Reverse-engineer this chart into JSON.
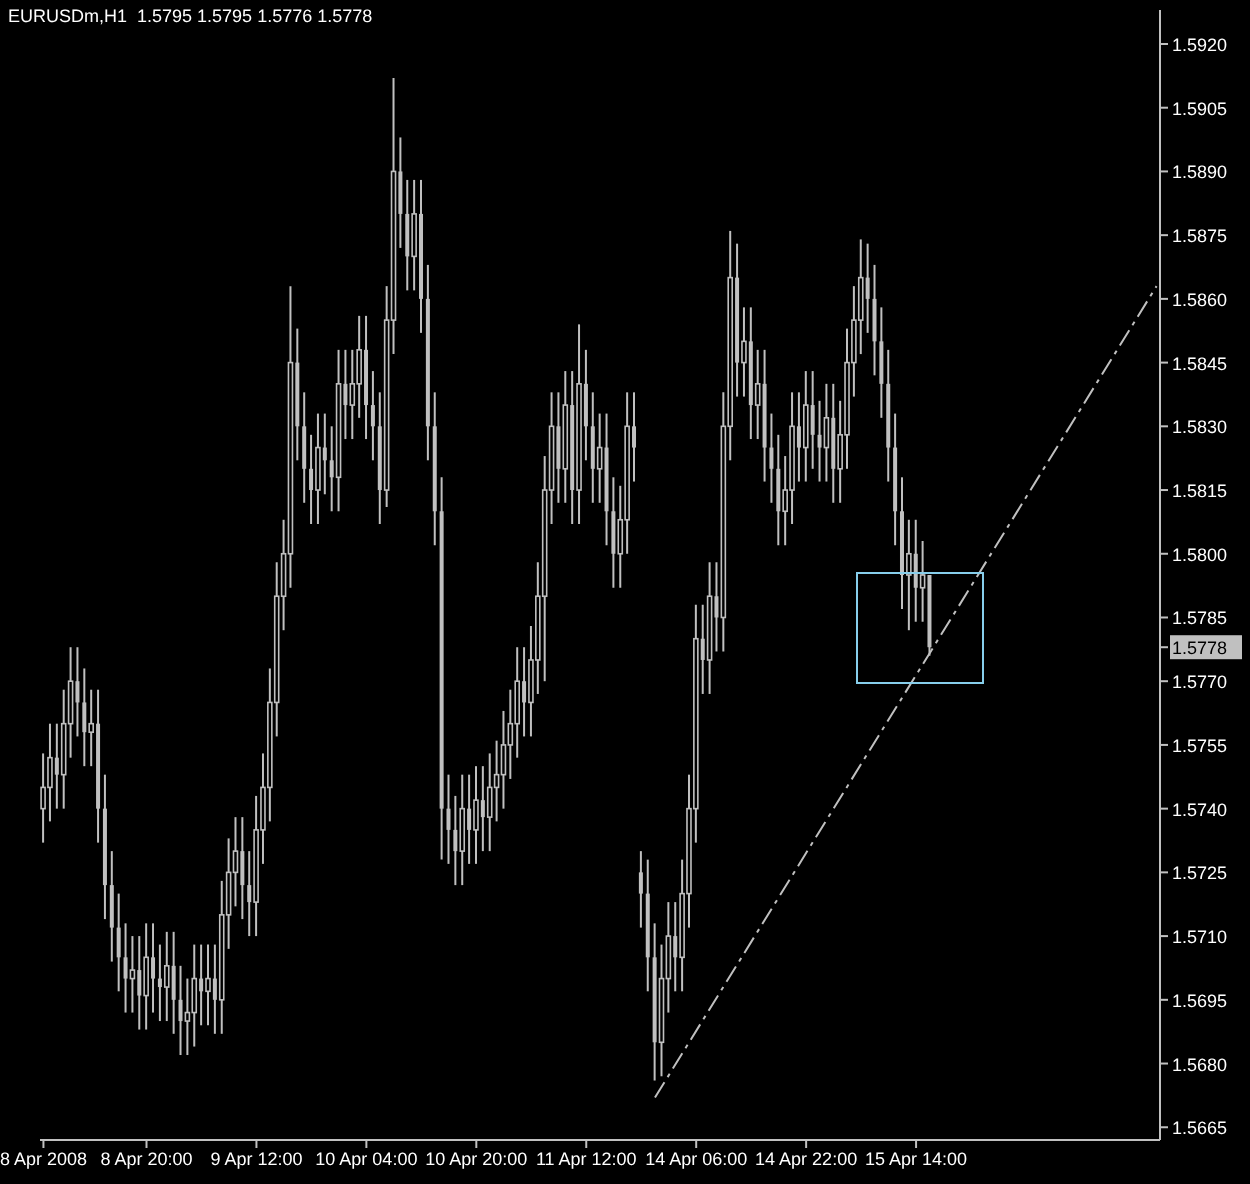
{
  "chart_data": {
    "type": "candlestick",
    "title": "EURUSDm,H1  1.5795 1.5795 1.5776 1.5778",
    "color": "#c0c0c0",
    "legend": false,
    "grid": false,
    "categories": [
      "8 Apr 2008",
      null,
      null,
      null,
      null,
      null,
      null,
      null,
      null,
      null,
      null,
      null,
      null,
      null,
      null,
      "8 Apr 20:00",
      null,
      null,
      null,
      null,
      null,
      null,
      null,
      null,
      null,
      null,
      null,
      null,
      null,
      null,
      null,
      "9 Apr 12:00",
      null,
      null,
      null,
      null,
      null,
      null,
      null,
      null,
      null,
      null,
      null,
      null,
      null,
      null,
      null,
      "10 Apr 04:00",
      null,
      null,
      null,
      null,
      null,
      null,
      null,
      null,
      null,
      null,
      null,
      null,
      null,
      null,
      null,
      "10 Apr 20:00",
      null,
      null,
      null,
      null,
      null,
      null,
      null,
      null,
      null,
      null,
      null,
      null,
      null,
      null,
      null,
      "11 Apr 12:00",
      null,
      null,
      null,
      null,
      null,
      null,
      null,
      null,
      null,
      null,
      null,
      null,
      null,
      null,
      null,
      "14 Apr 06:00",
      null,
      null,
      null,
      null,
      null,
      null,
      null,
      null,
      null,
      null,
      null,
      null,
      null,
      null,
      null,
      "14 Apr 22:00",
      null,
      null,
      null,
      null,
      null,
      null,
      null,
      null,
      null,
      null,
      null,
      null,
      null,
      null,
      null,
      "15 Apr 14:00",
      null,
      null,
      null,
      null,
      null,
      null,
      null,
      null,
      null,
      null,
      null,
      null,
      null,
      null,
      null,
      null,
      null,
      null,
      null,
      null,
      null,
      null,
      null,
      null,
      null,
      null,
      null,
      null,
      null,
      null,
      null,
      null,
      null,
      null,
      null
    ],
    "ohlc": [
      [
        1.574,
        1.5753,
        1.5732,
        1.5745
      ],
      [
        1.5745,
        1.576,
        1.5737,
        1.5752
      ],
      [
        1.5752,
        1.576,
        1.574,
        1.5748
      ],
      [
        1.5748,
        1.5768,
        1.574,
        1.576
      ],
      [
        1.576,
        1.5778,
        1.5752,
        1.577
      ],
      [
        1.577,
        1.5778,
        1.5757,
        1.5765
      ],
      [
        1.5765,
        1.5773,
        1.575,
        1.5758
      ],
      [
        1.5758,
        1.5768,
        1.575,
        1.576
      ],
      [
        1.576,
        1.5768,
        1.5732,
        1.574
      ],
      [
        1.574,
        1.5748,
        1.5714,
        1.5722
      ],
      [
        1.5722,
        1.573,
        1.5704,
        1.5712
      ],
      [
        1.5712,
        1.572,
        1.5697,
        1.5705
      ],
      [
        1.5705,
        1.5713,
        1.5692,
        1.57
      ],
      [
        1.57,
        1.571,
        1.5692,
        1.5702
      ],
      [
        1.5702,
        1.571,
        1.5688,
        1.5696
      ],
      [
        1.5696,
        1.5713,
        1.5688,
        1.5705
      ],
      [
        1.5705,
        1.5713,
        1.5692,
        1.57
      ],
      [
        1.57,
        1.5708,
        1.569,
        1.5698
      ],
      [
        1.5698,
        1.5711,
        1.569,
        1.5703
      ],
      [
        1.5703,
        1.5711,
        1.5687,
        1.5695
      ],
      [
        1.5695,
        1.5703,
        1.5682,
        1.569
      ],
      [
        1.569,
        1.57,
        1.5682,
        1.5692
      ],
      [
        1.5692,
        1.5708,
        1.5684,
        1.57
      ],
      [
        1.57,
        1.5708,
        1.5689,
        1.5697
      ],
      [
        1.5697,
        1.5708,
        1.5689,
        1.57
      ],
      [
        1.57,
        1.5708,
        1.5687,
        1.5695
      ],
      [
        1.5695,
        1.5723,
        1.5687,
        1.5715
      ],
      [
        1.5715,
        1.5733,
        1.5707,
        1.5725
      ],
      [
        1.5725,
        1.5738,
        1.5717,
        1.573
      ],
      [
        1.573,
        1.5738,
        1.5714,
        1.5722
      ],
      [
        1.5722,
        1.573,
        1.571,
        1.5718
      ],
      [
        1.5718,
        1.5743,
        1.571,
        1.5735
      ],
      [
        1.5735,
        1.5753,
        1.5727,
        1.5745
      ],
      [
        1.5745,
        1.5773,
        1.5737,
        1.5765
      ],
      [
        1.5765,
        1.5798,
        1.5757,
        1.579
      ],
      [
        1.579,
        1.5808,
        1.5782,
        1.58
      ],
      [
        1.58,
        1.5863,
        1.5792,
        1.5845
      ],
      [
        1.5845,
        1.5853,
        1.5822,
        1.583
      ],
      [
        1.583,
        1.5838,
        1.5812,
        1.582
      ],
      [
        1.582,
        1.5828,
        1.5807,
        1.5815
      ],
      [
        1.5815,
        1.5833,
        1.5807,
        1.5825
      ],
      [
        1.5825,
        1.5833,
        1.5814,
        1.5822
      ],
      [
        1.5822,
        1.583,
        1.581,
        1.5818
      ],
      [
        1.5818,
        1.5848,
        1.581,
        1.584
      ],
      [
        1.584,
        1.5848,
        1.5827,
        1.5835
      ],
      [
        1.5835,
        1.5848,
        1.5827,
        1.584
      ],
      [
        1.584,
        1.5856,
        1.5832,
        1.5848
      ],
      [
        1.5848,
        1.5856,
        1.5827,
        1.5835
      ],
      [
        1.5835,
        1.5843,
        1.5822,
        1.583
      ],
      [
        1.583,
        1.5838,
        1.5807,
        1.5815
      ],
      [
        1.5815,
        1.5863,
        1.5811,
        1.5855
      ],
      [
        1.5855,
        1.5912,
        1.5847,
        1.589
      ],
      [
        1.589,
        1.5898,
        1.5872,
        1.588
      ],
      [
        1.588,
        1.5888,
        1.5862,
        1.587
      ],
      [
        1.587,
        1.5888,
        1.5862,
        1.588
      ],
      [
        1.588,
        1.5888,
        1.5852,
        1.586
      ],
      [
        1.586,
        1.5868,
        1.5822,
        1.583
      ],
      [
        1.583,
        1.5838,
        1.5802,
        1.581
      ],
      [
        1.581,
        1.5818,
        1.5728,
        1.574
      ],
      [
        1.574,
        1.5748,
        1.5727,
        1.5735
      ],
      [
        1.5735,
        1.5743,
        1.5722,
        1.573
      ],
      [
        1.573,
        1.5748,
        1.5722,
        1.574
      ],
      [
        1.574,
        1.5748,
        1.5727,
        1.5735
      ],
      [
        1.5735,
        1.575,
        1.5727,
        1.5742
      ],
      [
        1.5742,
        1.575,
        1.573,
        1.5738
      ],
      [
        1.5738,
        1.5753,
        1.573,
        1.5745
      ],
      [
        1.5745,
        1.5756,
        1.5737,
        1.5748
      ],
      [
        1.5748,
        1.5763,
        1.574,
        1.5755
      ],
      [
        1.5755,
        1.5768,
        1.5747,
        1.576
      ],
      [
        1.576,
        1.5778,
        1.5752,
        1.577
      ],
      [
        1.577,
        1.5778,
        1.5757,
        1.5765
      ],
      [
        1.5765,
        1.5783,
        1.5757,
        1.5775
      ],
      [
        1.5775,
        1.5798,
        1.5767,
        1.579
      ],
      [
        1.579,
        1.5823,
        1.577,
        1.5815
      ],
      [
        1.5815,
        1.5838,
        1.5807,
        1.583
      ],
      [
        1.583,
        1.5838,
        1.5812,
        1.582
      ],
      [
        1.582,
        1.5843,
        1.5812,
        1.5835
      ],
      [
        1.5835,
        1.5843,
        1.5807,
        1.5815
      ],
      [
        1.5815,
        1.5854,
        1.5807,
        1.584
      ],
      [
        1.584,
        1.5848,
        1.5822,
        1.583
      ],
      [
        1.583,
        1.5838,
        1.5812,
        1.582
      ],
      [
        1.582,
        1.5833,
        1.5812,
        1.5825
      ],
      [
        1.5825,
        1.5833,
        1.5802,
        1.581
      ],
      [
        1.581,
        1.5818,
        1.5792,
        1.58
      ],
      [
        1.58,
        1.5816,
        1.5792,
        1.5808
      ],
      [
        1.5808,
        1.5838,
        1.58,
        1.583
      ],
      [
        1.583,
        1.5838,
        1.5817,
        1.5825
      ],
      [
        1.5725,
        1.573,
        1.5712,
        1.572
      ],
      [
        1.572,
        1.5728,
        1.5697,
        1.5705
      ],
      [
        1.5705,
        1.5713,
        1.5676,
        1.5685
      ],
      [
        1.5685,
        1.5708,
        1.5677,
        1.57
      ],
      [
        1.57,
        1.5718,
        1.5692,
        1.571
      ],
      [
        1.571,
        1.5718,
        1.5697,
        1.5705
      ],
      [
        1.5705,
        1.5728,
        1.5697,
        1.572
      ],
      [
        1.572,
        1.5748,
        1.5712,
        1.574
      ],
      [
        1.574,
        1.5788,
        1.5732,
        1.578
      ],
      [
        1.578,
        1.5788,
        1.5767,
        1.5775
      ],
      [
        1.5775,
        1.5798,
        1.5767,
        1.579
      ],
      [
        1.579,
        1.5798,
        1.5777,
        1.5785
      ],
      [
        1.5785,
        1.5838,
        1.5777,
        1.583
      ],
      [
        1.583,
        1.5876,
        1.5822,
        1.5865
      ],
      [
        1.5865,
        1.5873,
        1.5837,
        1.5845
      ],
      [
        1.5845,
        1.5858,
        1.5837,
        1.585
      ],
      [
        1.585,
        1.5858,
        1.5827,
        1.5835
      ],
      [
        1.5835,
        1.5848,
        1.5827,
        1.584
      ],
      [
        1.584,
        1.5848,
        1.5817,
        1.5825
      ],
      [
        1.5825,
        1.5833,
        1.5812,
        1.582
      ],
      [
        1.582,
        1.5828,
        1.5802,
        1.581
      ],
      [
        1.581,
        1.5823,
        1.5802,
        1.5815
      ],
      [
        1.5815,
        1.5838,
        1.5807,
        1.583
      ],
      [
        1.583,
        1.5838,
        1.5817,
        1.5825
      ],
      [
        1.5825,
        1.5843,
        1.5817,
        1.5835
      ],
      [
        1.5835,
        1.5843,
        1.582,
        1.5828
      ],
      [
        1.5828,
        1.5836,
        1.5817,
        1.5825
      ],
      [
        1.5825,
        1.584,
        1.5817,
        1.5832
      ],
      [
        1.5832,
        1.584,
        1.5812,
        1.582
      ],
      [
        1.582,
        1.5836,
        1.5812,
        1.5828
      ],
      [
        1.5828,
        1.5853,
        1.582,
        1.5845
      ],
      [
        1.5845,
        1.5863,
        1.5837,
        1.5855
      ],
      [
        1.5855,
        1.5874,
        1.5847,
        1.5865
      ],
      [
        1.5865,
        1.5873,
        1.5852,
        1.586
      ],
      [
        1.586,
        1.5868,
        1.5842,
        1.585
      ],
      [
        1.585,
        1.5858,
        1.5832,
        1.584
      ],
      [
        1.584,
        1.5848,
        1.5817,
        1.5825
      ],
      [
        1.5825,
        1.5833,
        1.5802,
        1.581
      ],
      [
        1.581,
        1.5818,
        1.5787,
        1.5795
      ],
      [
        1.5795,
        1.5808,
        1.5782,
        1.58
      ],
      [
        1.58,
        1.5808,
        1.5784,
        1.5792
      ],
      [
        1.5792,
        1.5803,
        1.5784,
        1.5795
      ],
      [
        1.5795,
        1.5795,
        1.5776,
        1.5778
      ],
      null,
      null,
      null,
      null,
      null,
      null,
      null,
      null,
      null,
      null,
      null,
      null,
      null,
      null,
      null,
      null,
      null,
      null,
      null,
      null,
      null,
      null,
      null,
      null,
      null,
      null,
      null,
      null,
      null,
      null,
      null,
      null,
      null
    ],
    "series": [
      {
        "type": "line",
        "color": "#c0c0c0",
        "line_style": "dashed",
        "marker": "none",
        "values": [
          null,
          null,
          null,
          null,
          null,
          null,
          null,
          null,
          null,
          null,
          null,
          null,
          null,
          null,
          null,
          null,
          null,
          null,
          null,
          null,
          null,
          null,
          null,
          null,
          null,
          null,
          null,
          null,
          null,
          null,
          null,
          null,
          null,
          null,
          null,
          null,
          null,
          null,
          null,
          null,
          null,
          null,
          null,
          null,
          null,
          null,
          null,
          null,
          null,
          null,
          null,
          null,
          null,
          null,
          null,
          null,
          null,
          null,
          null,
          null,
          null,
          null,
          null,
          null,
          null,
          null,
          null,
          null,
          null,
          null,
          null,
          null,
          null,
          null,
          null,
          null,
          null,
          null,
          null,
          null,
          null,
          null,
          null,
          null,
          null,
          null,
          null,
          null,
          null,
          1.5672,
          null,
          null,
          null,
          null,
          null,
          null,
          null,
          null,
          null,
          null,
          null,
          null,
          null,
          null,
          null,
          null,
          null,
          null,
          null,
          null,
          null,
          null,
          null,
          null,
          null,
          null,
          null,
          null,
          null,
          null,
          null,
          null,
          null,
          null,
          null,
          null,
          null,
          null,
          null,
          null,
          null,
          null,
          null,
          null,
          null,
          null,
          null,
          null,
          null,
          null,
          null,
          null,
          null,
          null,
          null,
          null,
          null,
          null,
          null,
          null,
          null,
          null,
          null,
          null,
          null,
          null,
          null,
          null,
          null,
          null,
          null,
          null,
          1.5863
        ]
      }
    ],
    "ylim": [
      1.5662,
      1.5928
    ],
    "yticks": [
      {
        "value": 1.592,
        "label": "1.5920"
      },
      1.5905,
      {
        "value": 1.589,
        "label": "1.5890"
      },
      1.5875,
      {
        "value": 1.586,
        "label": "1.5860"
      },
      1.5845,
      {
        "value": 1.583,
        "label": "1.5830"
      },
      1.5815,
      {
        "value": 1.58,
        "label": "1.5800"
      },
      1.5785,
      {
        "value": 1.5778,
        "label": "1.5778"
      },
      {
        "value": 1.577,
        "label": "1.5770"
      },
      1.5755,
      {
        "value": 1.574,
        "label": "1.5740"
      },
      1.5725,
      {
        "value": 1.571,
        "label": "1.5710"
      },
      1.5695,
      {
        "value": 1.568,
        "label": "1.5680"
      },
      1.5665
    ]
  }
}
